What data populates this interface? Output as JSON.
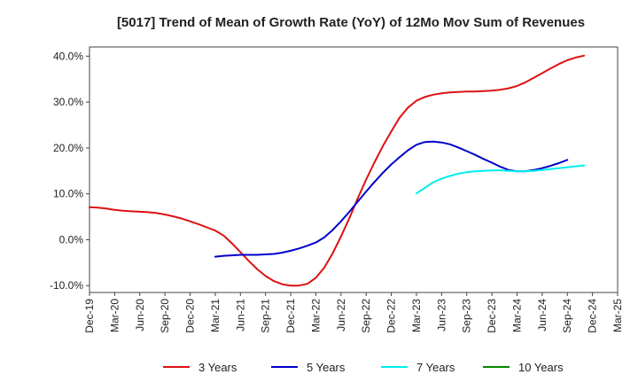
{
  "chart_data": {
    "type": "line",
    "title": "[5017]  Trend of Mean of Growth Rate (YoY) of 12Mo Mov Sum of Revenues",
    "xlabel": "",
    "ylabel": "",
    "ylim": [
      -11.5,
      42
    ],
    "yticks": [
      -10,
      0,
      10,
      20,
      30,
      40
    ],
    "ytick_labels": [
      "-10.0%",
      "0.0%",
      "10.0%",
      "20.0%",
      "30.0%",
      "40.0%"
    ],
    "x_start": "Dec-19",
    "x_months_total": 63,
    "xtick_labels": [
      "Dec-19",
      "Mar-20",
      "Jun-20",
      "Sep-20",
      "Dec-20",
      "Mar-21",
      "Jun-21",
      "Sep-21",
      "Dec-21",
      "Mar-22",
      "Jun-22",
      "Sep-22",
      "Dec-22",
      "Mar-23",
      "Jun-23",
      "Sep-23",
      "Dec-23",
      "Mar-24",
      "Jun-24",
      "Sep-24",
      "Dec-24",
      "Mar-25"
    ],
    "grid": true,
    "legend_position": "bottom",
    "series": [
      {
        "name": "3 Years",
        "color": "#dd1111",
        "start_month": 0,
        "values": [
          7.1,
          7.0,
          6.8,
          6.5,
          6.3,
          6.2,
          6.1,
          6.0,
          5.8,
          5.5,
          5.1,
          4.6,
          4.0,
          3.4,
          2.7,
          2.0,
          0.9,
          -0.8,
          -2.7,
          -4.6,
          -6.4,
          -7.9,
          -9.0,
          -9.7,
          -10.0,
          -10.0,
          -9.6,
          -8.3,
          -6.1,
          -3.0,
          0.7,
          4.7,
          9.0,
          13.1,
          16.9,
          20.4,
          23.6,
          26.6,
          28.8,
          30.3,
          31.1,
          31.6,
          31.9,
          32.1,
          32.2,
          32.3,
          32.3,
          32.4,
          32.5,
          32.7,
          33.0,
          33.5,
          34.3,
          35.3,
          36.3,
          37.3,
          38.3,
          39.1,
          39.7,
          40.1
        ]
      },
      {
        "name": "5 Years",
        "color": "#0000cc",
        "start_month": 15,
        "values": [
          -3.7,
          -3.5,
          -3.4,
          -3.3,
          -3.3,
          -3.3,
          -3.2,
          -3.1,
          -2.8,
          -2.4,
          -1.9,
          -1.3,
          -0.6,
          0.5,
          2.1,
          4.0,
          6.1,
          8.3,
          10.5,
          12.6,
          14.6,
          16.4,
          18.0,
          19.5,
          20.7,
          21.3,
          21.4,
          21.2,
          20.8,
          20.1,
          19.3,
          18.5,
          17.6,
          16.8,
          15.9,
          15.2,
          14.9,
          14.9,
          15.2,
          15.6,
          16.1,
          16.7,
          17.4
        ]
      },
      {
        "name": "7 Years",
        "color": "#00eeee",
        "start_month": 39,
        "values": [
          10.1,
          11.3,
          12.5,
          13.3,
          13.9,
          14.4,
          14.7,
          14.9,
          15.0,
          15.1,
          15.1,
          15.0,
          14.9,
          14.9,
          15.0,
          15.2,
          15.4,
          15.6,
          15.8,
          16.0,
          16.2
        ]
      },
      {
        "name": "10 Years",
        "color": "#008800",
        "start_month": 0,
        "values": []
      }
    ]
  }
}
